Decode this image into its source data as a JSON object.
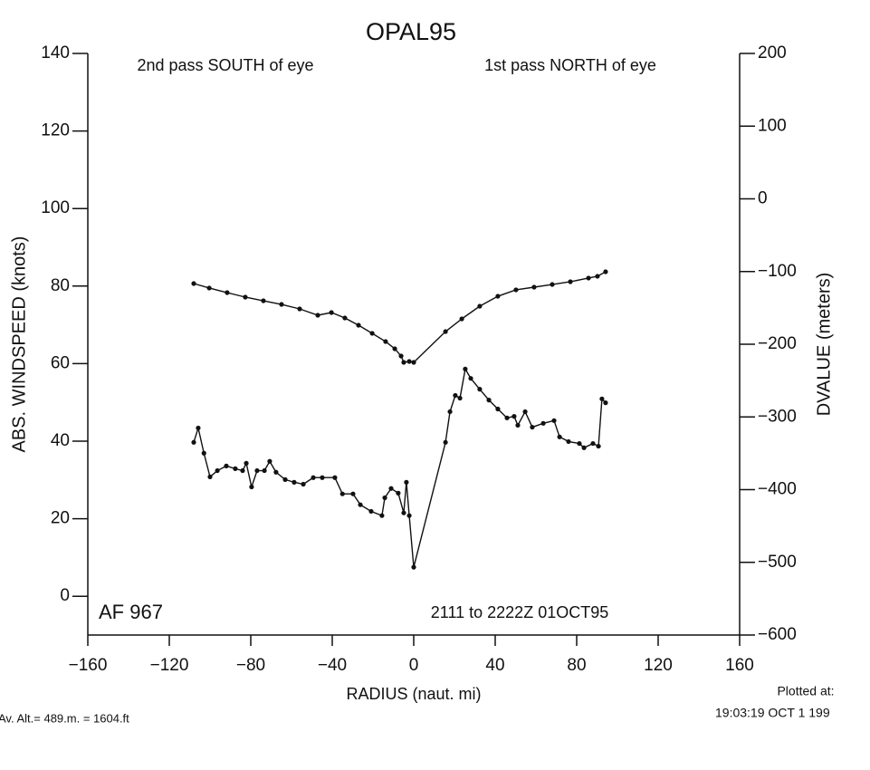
{
  "chart_data": {
    "type": "line",
    "title": "OPAL95",
    "xlabel": "RADIUS (naut. mi)",
    "ylabel": "ABS. WINDSPEED (knots)",
    "y2label": "DVALUE (meters)",
    "annotations": [
      "2nd pass SOUTH of eye",
      "1st pass NORTH of eye",
      "AF 967",
      "2111 to 2222Z 01OCT95",
      "Plotted at:",
      "19:03:19 OCT  1 199",
      "Av. Alt.=  489.m. =  1604.ft"
    ],
    "xlim": [
      -160,
      160
    ],
    "xticks": [
      {
        "value": -160,
        "label": "−160"
      },
      {
        "value": -120,
        "label": "−120"
      },
      {
        "value": -80,
        "label": "−80"
      },
      {
        "value": -40,
        "label": "−40"
      },
      0,
      40,
      80,
      120,
      160
    ],
    "ylim": [
      -10,
      140
    ],
    "yticks": [
      0,
      20,
      40,
      60,
      80,
      100,
      120,
      140
    ],
    "y2lim": [
      -600,
      200
    ],
    "y2ticks": [
      {
        "value": -600,
        "label": "−600"
      },
      {
        "value": -500,
        "label": "−500"
      },
      {
        "value": -400,
        "label": "−400"
      },
      {
        "value": -300,
        "label": "−300"
      },
      {
        "value": -200,
        "label": "−200"
      },
      {
        "value": -100,
        "label": "−100"
      },
      0,
      100,
      200
    ],
    "series": [
      {
        "color": "#111111",
        "axis": "y",
        "x": [
          -108,
          -105.8,
          -103,
          -100,
          -96.4,
          -92,
          -87.6,
          -84,
          -82.2,
          -79.6,
          -76.9,
          -73.3,
          -70.7,
          -67.6,
          -63.1,
          -58.7,
          -54.2,
          -49.3,
          -44.9,
          -38.7,
          -35,
          -29.8,
          -26.2,
          -20.9,
          -15.6,
          -14.2,
          -11.1,
          -7.6,
          -4.9,
          -3.6,
          -2.2,
          0,
          15.6,
          17.8,
          20.4,
          22.7,
          25.3,
          28,
          32.4,
          36.9,
          41.3,
          45.8,
          49.3,
          51.1,
          54.7,
          58.2,
          63.6,
          68.9,
          71.6,
          76,
          81.3,
          83.6,
          88,
          90.7,
          92.4,
          94.2
        ],
        "values": [
          39.7,
          43.4,
          36.9,
          30.8,
          32.4,
          33.6,
          32.9,
          32.4,
          34.3,
          28.2,
          32.4,
          32.4,
          34.8,
          32,
          30.1,
          29.4,
          28.9,
          30.6,
          30.6,
          30.6,
          26.4,
          26.4,
          23.6,
          21.9,
          20.8,
          25.4,
          27.8,
          26.6,
          21.5,
          29.4,
          20.8,
          7.5,
          39.7,
          47.6,
          51.8,
          51.1,
          58.6,
          56.2,
          53.4,
          50.6,
          48.3,
          46,
          46.4,
          44.1,
          47.6,
          43.6,
          44.6,
          45.3,
          41.1,
          39.9,
          39.4,
          38.3,
          39.4,
          38.7,
          50.9,
          49.9
        ]
      },
      {
        "color": "#111111",
        "axis": "y2",
        "x": [
          -108,
          -100.4,
          -91.6,
          -82.7,
          -73.8,
          -64.9,
          -56,
          -47.1,
          -40.4,
          -33.8,
          -27.1,
          -20.4,
          -13.8,
          -9.3,
          -6.2,
          -4.9,
          -2.2,
          0,
          15.6,
          23.6,
          32.4,
          41.3,
          50.2,
          59.1,
          68,
          76.9,
          85.8,
          90.2,
          94.2
        ],
        "values": [
          -116.5,
          -122.7,
          -129,
          -135.2,
          -140.2,
          -145.2,
          -151.4,
          -160.1,
          -156.4,
          -163.9,
          -173.8,
          -185,
          -196.3,
          -206.2,
          -216.2,
          -224.9,
          -223.7,
          -224.9,
          -182.6,
          -165.1,
          -147.7,
          -134,
          -125.2,
          -121.5,
          -117.8,
          -114,
          -109,
          -106.5,
          -100.3
        ]
      }
    ]
  }
}
